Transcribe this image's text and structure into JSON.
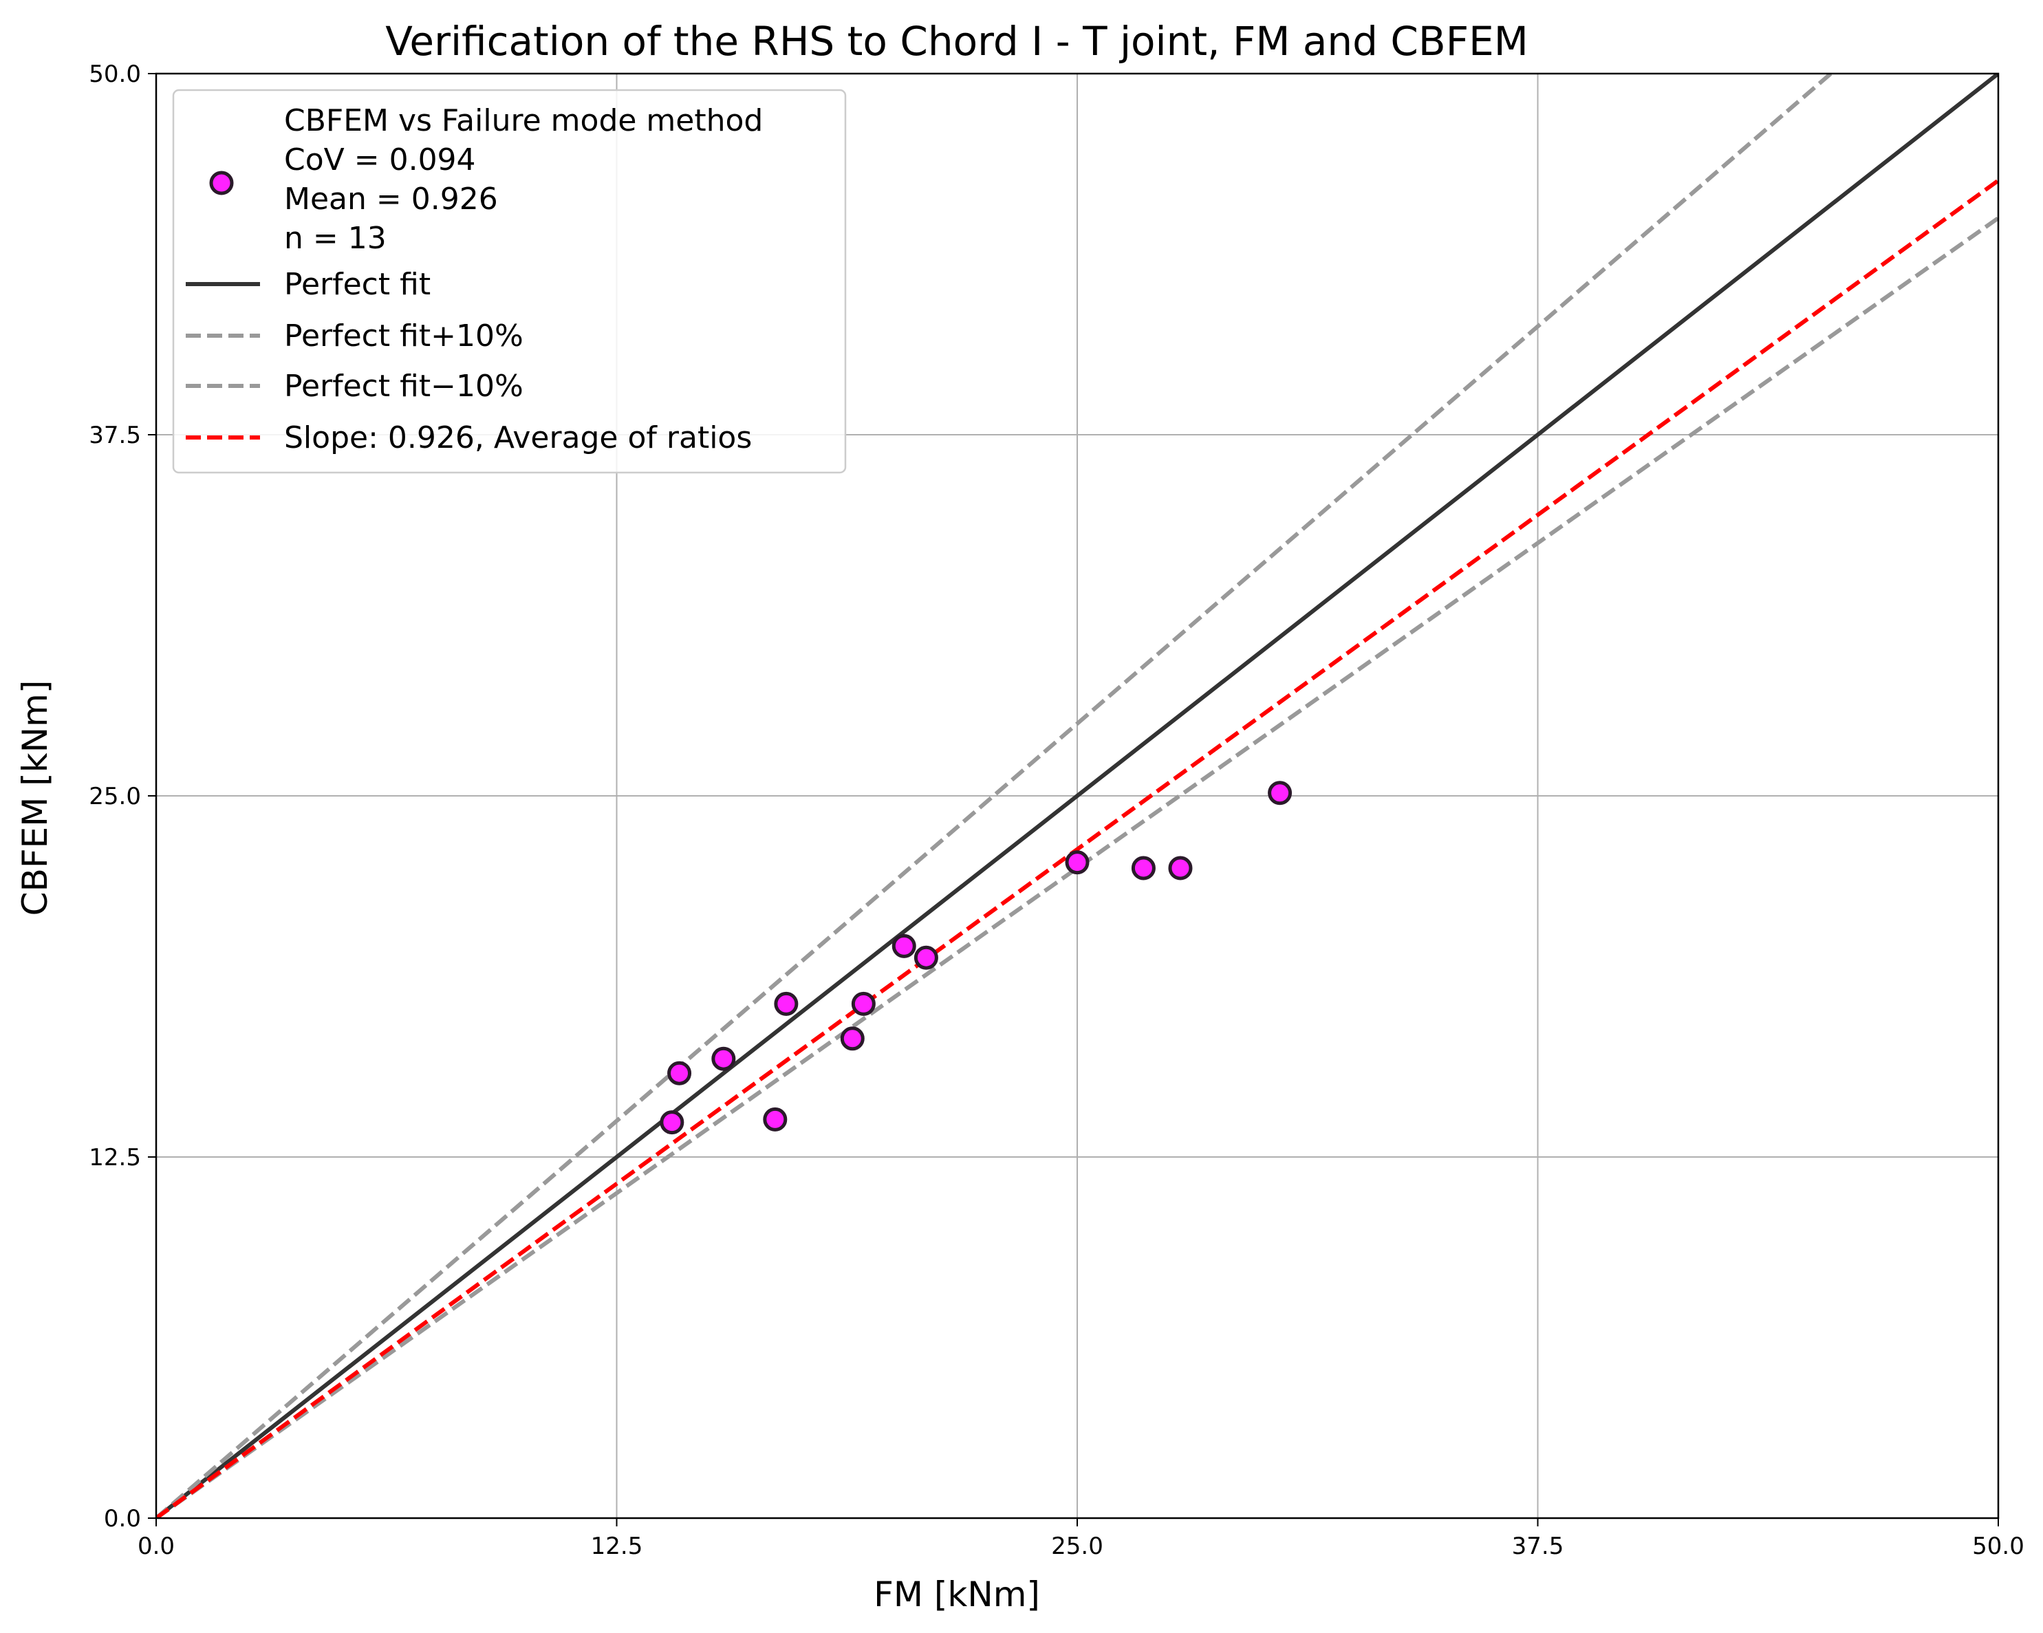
{
  "chart_data": {
    "type": "scatter",
    "title": "Verification of the RHS to Chord I - T joint, FM and CBFEM",
    "xlabel": "FM [kNm]",
    "ylabel": "CBFEM [kNm]",
    "xlim": [
      0,
      50
    ],
    "ylim": [
      0,
      50
    ],
    "xticks": [
      "0.0",
      "12.5",
      "25.0",
      "37.5",
      "50.0"
    ],
    "yticks": [
      "0.0",
      "12.5",
      "25.0",
      "37.5",
      "50.0"
    ],
    "grid": true,
    "legend_position": "upper-left",
    "series": [
      {
        "name": "CBFEM vs Failure mode method",
        "legend_lines": [
          "CBFEM vs Failure mode method",
          "CoV = 0.094",
          "Mean = 0.926",
          "n = 13"
        ],
        "kind": "scatter",
        "color": "#ff22ff",
        "edge_color": "#2a1a2a",
        "points": [
          {
            "x": 14.0,
            "y": 13.7
          },
          {
            "x": 14.2,
            "y": 15.4
          },
          {
            "x": 15.4,
            "y": 15.9
          },
          {
            "x": 16.8,
            "y": 13.8
          },
          {
            "x": 17.1,
            "y": 17.8
          },
          {
            "x": 18.9,
            "y": 16.6
          },
          {
            "x": 19.2,
            "y": 17.8
          },
          {
            "x": 20.3,
            "y": 19.8
          },
          {
            "x": 20.9,
            "y": 19.4
          },
          {
            "x": 25.0,
            "y": 22.7
          },
          {
            "x": 26.8,
            "y": 22.5
          },
          {
            "x": 27.8,
            "y": 22.5
          },
          {
            "x": 30.5,
            "y": 25.1
          }
        ]
      },
      {
        "name": "Perfect fit",
        "kind": "line",
        "slope": 1.0,
        "color": "#333333",
        "dash": "solid"
      },
      {
        "name": "Perfect fit+10%",
        "kind": "line",
        "slope": 1.1,
        "color": "#999999",
        "dash": "dashed"
      },
      {
        "name": "Perfect fit−10%",
        "kind": "line",
        "slope": 0.9,
        "color": "#999999",
        "dash": "dashed"
      },
      {
        "name": "Slope: 0.926, Average of ratios",
        "kind": "line",
        "slope": 0.926,
        "color": "#ff0000",
        "dash": "dashed"
      }
    ]
  }
}
